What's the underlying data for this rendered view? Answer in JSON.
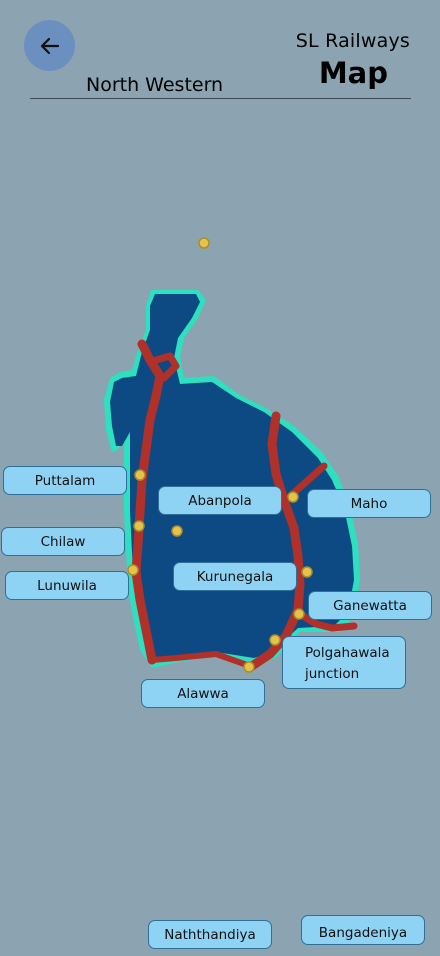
{
  "header": {
    "app_title": "SL Railways",
    "page_title": "Map",
    "province": "North Western",
    "back_icon": "arrow-left-icon"
  },
  "stations": [
    {
      "id": "puttalam",
      "label": "Puttalam"
    },
    {
      "id": "abanpola",
      "label": "Abanpola"
    },
    {
      "id": "maho",
      "label": "Maho"
    },
    {
      "id": "chilaw",
      "label": "Chilaw"
    },
    {
      "id": "kurunegala",
      "label": "Kurunegala"
    },
    {
      "id": "lunuwila",
      "label": "Lunuwila"
    },
    {
      "id": "ganewatta",
      "label": "Ganewatta"
    },
    {
      "id": "polgahawala",
      "label": "Polgahawala junction"
    },
    {
      "id": "alawwa",
      "label": "Alawwa"
    },
    {
      "id": "naththandiya",
      "label": "Naththandiya"
    },
    {
      "id": "bangadeniya",
      "label": "Bangadeniya"
    }
  ],
  "colors": {
    "background": "#8ca4b1",
    "region_fill": "#0d4a83",
    "region_outline": "#2de0c0",
    "railway": "#b0302a",
    "station_dot": "#e6c24a",
    "label_fill": "#8fd3f4",
    "back_button": "#6b8fbf"
  }
}
